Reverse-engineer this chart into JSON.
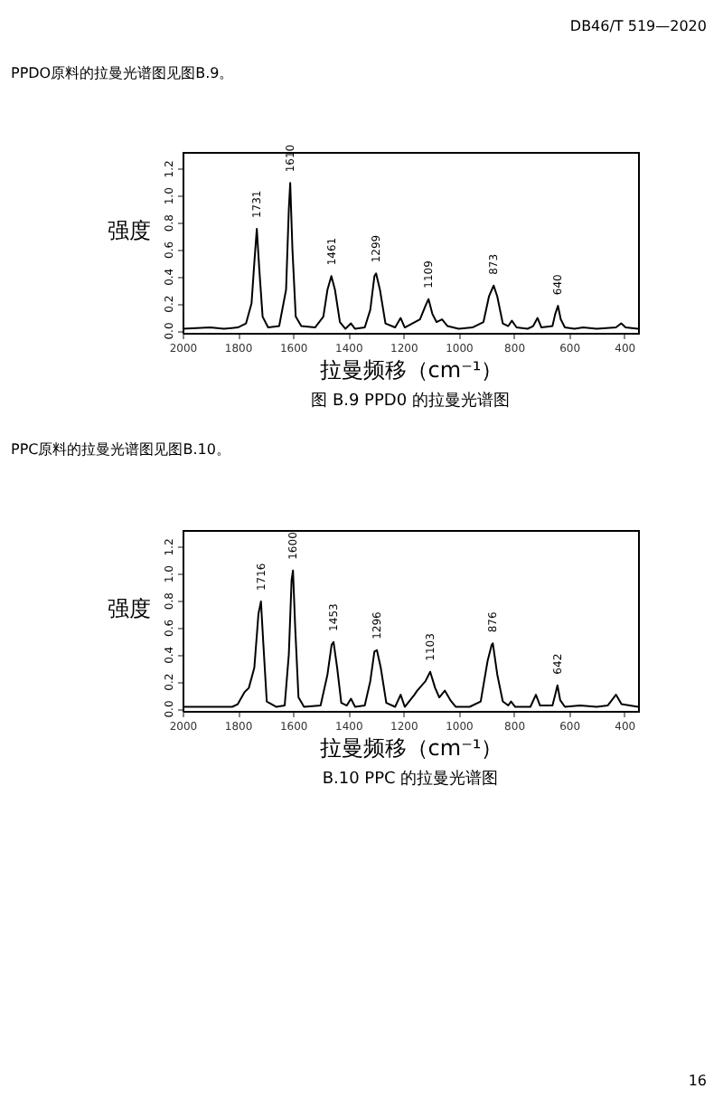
{
  "chart_data": [
    {
      "type": "line",
      "title": "图 B.9 PPD0 的拉曼光谱图",
      "xlabel": "拉曼频移（cm⁻¹）",
      "ylabel": "强度",
      "annotations": [
        "DB46/T 519—2020",
        "PPDO原料的拉曼光谱图见图B.9。",
        {
          "text": "1731",
          "x": 1731,
          "y": 0.75
        },
        {
          "text": "1610",
          "x": 1610,
          "y": 1.09
        },
        {
          "text": "1461",
          "x": 1461,
          "y": 0.4
        },
        {
          "text": "1299",
          "x": 1299,
          "y": 0.42
        },
        {
          "text": "1109",
          "x": 1109,
          "y": 0.23
        },
        {
          "text": "873",
          "x": 873,
          "y": 0.33
        },
        {
          "text": "640",
          "x": 640,
          "y": 0.18
        }
      ],
      "series": [
        {
          "color": "#000000",
          "x": [
            2000,
            1900,
            1850,
            1800,
            1770,
            1750,
            1740,
            1731,
            1722,
            1710,
            1690,
            1650,
            1625,
            1615,
            1610,
            1602,
            1590,
            1570,
            1520,
            1490,
            1475,
            1461,
            1448,
            1430,
            1410,
            1390,
            1375,
            1340,
            1320,
            1305,
            1299,
            1285,
            1265,
            1230,
            1210,
            1195,
            1140,
            1120,
            1109,
            1095,
            1080,
            1060,
            1040,
            1000,
            950,
            910,
            890,
            873,
            860,
            840,
            820,
            807,
            790,
            750,
            730,
            714,
            700,
            660,
            650,
            640,
            630,
            615,
            580,
            549,
            500,
            430,
            411,
            395,
            350
          ],
          "values": [
            0.01,
            0.02,
            0.01,
            0.02,
            0.05,
            0.2,
            0.5,
            0.75,
            0.45,
            0.1,
            0.02,
            0.03,
            0.3,
            0.9,
            1.09,
            0.6,
            0.1,
            0.03,
            0.02,
            0.1,
            0.3,
            0.4,
            0.3,
            0.06,
            0.01,
            0.05,
            0.01,
            0.02,
            0.15,
            0.4,
            0.42,
            0.3,
            0.05,
            0.02,
            0.09,
            0.02,
            0.08,
            0.18,
            0.23,
            0.12,
            0.06,
            0.08,
            0.03,
            0.01,
            0.02,
            0.06,
            0.25,
            0.33,
            0.25,
            0.05,
            0.03,
            0.07,
            0.02,
            0.01,
            0.03,
            0.09,
            0.02,
            0.03,
            0.12,
            0.18,
            0.08,
            0.02,
            0.01,
            0.02,
            0.01,
            0.02,
            0.05,
            0.02,
            0.01
          ]
        }
      ],
      "xlim": [
        2000,
        350
      ],
      "xticks": [
        2000,
        1800,
        1600,
        1400,
        1200,
        1000,
        800,
        600,
        400
      ],
      "ylim": [
        -0.02,
        1.32
      ],
      "yticks": [
        {
          "value": 0,
          "label": "0.0"
        },
        {
          "value": 0.2,
          "label": "0.2"
        },
        {
          "value": 0.4,
          "label": "0.4"
        },
        {
          "value": 0.6,
          "label": "0.6"
        },
        {
          "value": 0.8,
          "label": "0.8"
        },
        {
          "value": 1.0,
          "label": "1.0"
        },
        {
          "value": 1.2,
          "label": "1.2"
        }
      ],
      "grid": false,
      "legend": false,
      "marker": "none",
      "line_style": "solid"
    },
    {
      "type": "line",
      "title": "B.10 PPC 的拉曼光谱图",
      "xlabel": "拉曼频移（cm⁻¹）",
      "ylabel": "强度",
      "annotations": [
        "PPC原料的拉曼光谱图见图B.10。",
        "16",
        {
          "text": "1716",
          "x": 1716,
          "y": 0.79
        },
        {
          "text": "1600",
          "x": 1600,
          "y": 1.02
        },
        {
          "text": "1453",
          "x": 1453,
          "y": 0.49
        },
        {
          "text": "1296",
          "x": 1296,
          "y": 0.43
        },
        {
          "text": "1103",
          "x": 1103,
          "y": 0.27
        },
        {
          "text": "876",
          "x": 876,
          "y": 0.48
        },
        {
          "text": "642",
          "x": 642,
          "y": 0.17
        }
      ],
      "series": [
        {
          "color": "#000000",
          "x": [
            2000,
            1900,
            1820,
            1800,
            1775,
            1760,
            1740,
            1725,
            1716,
            1708,
            1695,
            1660,
            1630,
            1615,
            1605,
            1600,
            1592,
            1580,
            1560,
            1500,
            1475,
            1460,
            1453,
            1440,
            1425,
            1405,
            1390,
            1375,
            1340,
            1320,
            1305,
            1296,
            1282,
            1262,
            1230,
            1210,
            1195,
            1160,
            1150,
            1120,
            1103,
            1085,
            1070,
            1050,
            1030,
            1010,
            960,
            920,
            895,
            880,
            876,
            860,
            840,
            820,
            810,
            795,
            740,
            720,
            705,
            660,
            650,
            642,
            632,
            615,
            560,
            500,
            460,
            430,
            410,
            350
          ],
          "values": [
            0.01,
            0.01,
            0.01,
            0.03,
            0.12,
            0.15,
            0.3,
            0.7,
            0.79,
            0.5,
            0.05,
            0.01,
            0.02,
            0.4,
            0.95,
            1.02,
            0.6,
            0.08,
            0.01,
            0.02,
            0.25,
            0.47,
            0.49,
            0.3,
            0.04,
            0.02,
            0.07,
            0.01,
            0.02,
            0.2,
            0.42,
            0.43,
            0.3,
            0.04,
            0.01,
            0.1,
            0.01,
            0.1,
            0.13,
            0.2,
            0.27,
            0.15,
            0.08,
            0.13,
            0.06,
            0.01,
            0.01,
            0.05,
            0.35,
            0.47,
            0.48,
            0.25,
            0.05,
            0.02,
            0.05,
            0.01,
            0.01,
            0.1,
            0.02,
            0.02,
            0.1,
            0.17,
            0.06,
            0.01,
            0.02,
            0.01,
            0.02,
            0.1,
            0.03,
            0.01
          ]
        }
      ],
      "xlim": [
        2000,
        350
      ],
      "xticks": [
        2000,
        1800,
        1600,
        1400,
        1200,
        1000,
        800,
        600,
        400
      ],
      "ylim": [
        -0.02,
        1.32
      ],
      "yticks": [
        {
          "value": 0,
          "label": "0.0"
        },
        {
          "value": 0.2,
          "label": "0.2"
        },
        {
          "value": 0.4,
          "label": "0.4"
        },
        {
          "value": 0.6,
          "label": "0.6"
        },
        {
          "value": 0.8,
          "label": "0.8"
        },
        {
          "value": 1.0,
          "label": "1.0"
        },
        {
          "value": 1.2,
          "label": "1.2"
        }
      ],
      "grid": false,
      "legend": false,
      "marker": "none",
      "line_style": "solid"
    }
  ]
}
